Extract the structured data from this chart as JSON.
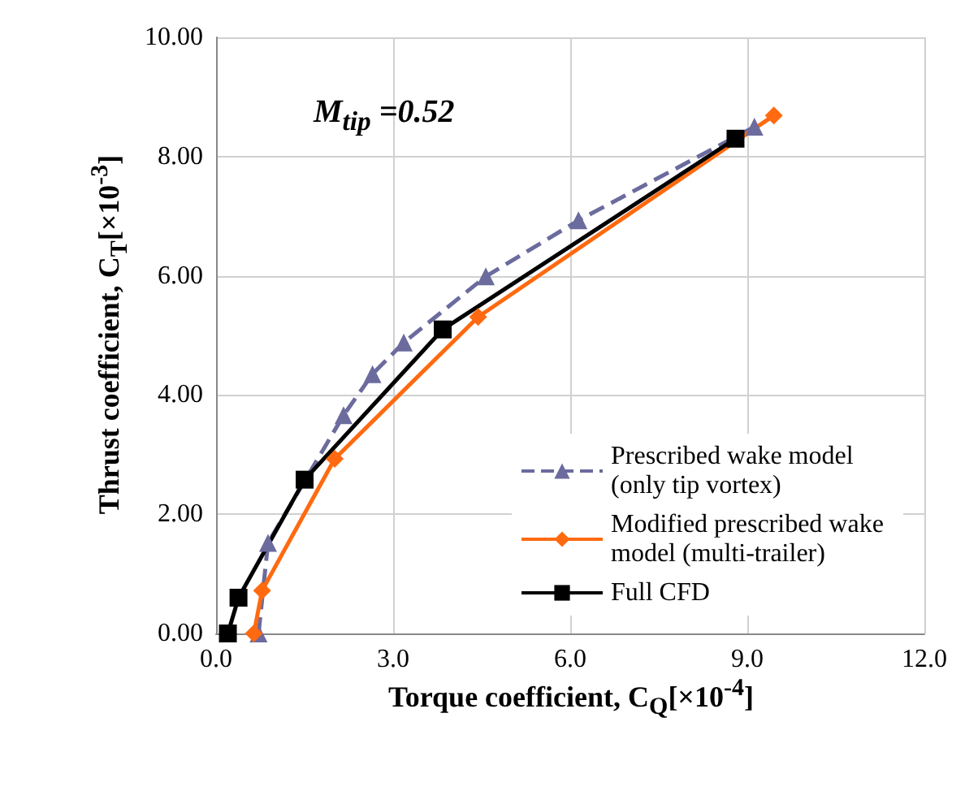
{
  "chart_data": {
    "type": "line",
    "xlabel": "Torque coefficient, C$_{Q}$[×10$^{-4}$]",
    "ylabel": "Thrust coefficient, C$_{T}$[×10$^{-3}$]",
    "annotations": [
      "M$_{tip}$ =0.52"
    ],
    "xlim": [
      0,
      12
    ],
    "xticks": [
      {
        "value": 0,
        "label": "0.0"
      },
      {
        "value": 3,
        "label": "3.0"
      },
      {
        "value": 6,
        "label": "6.0"
      },
      {
        "value": 9,
        "label": "9.0"
      },
      {
        "value": 12,
        "label": "12.0"
      }
    ],
    "ylim": [
      0,
      10
    ],
    "yticks": [
      {
        "value": 0,
        "label": "0.00"
      },
      {
        "value": 2,
        "label": "2.00"
      },
      {
        "value": 4,
        "label": "4.00"
      },
      {
        "value": 6,
        "label": "6.00"
      },
      {
        "value": 8,
        "label": "8.00"
      },
      {
        "value": 10,
        "label": "10.00"
      }
    ],
    "grid": true,
    "legend": "bottom right",
    "series": [
      {
        "name": "Prescribed wake model (only tip vortex)",
        "color": "#6b6b9e",
        "marker": "triangle",
        "line_style": "dashed",
        "x": [
          0.72,
          0.88,
          2.16,
          2.65,
          3.18,
          4.57,
          6.14,
          9.12
        ],
        "values": [
          0,
          1.52,
          3.66,
          4.35,
          4.88,
          5.99,
          6.93,
          8.5
        ]
      },
      {
        "name": "Modified prescribed wake model (multi-trailer)",
        "color": "#ff6a10",
        "marker": "diamond",
        "line_style": "solid",
        "x": [
          0.64,
          0.78,
          2.01,
          4.44,
          9.45
        ],
        "values": [
          0,
          0.72,
          2.93,
          5.31,
          8.69
        ]
      },
      {
        "name": "Full CFD",
        "color": "#000000",
        "marker": "square",
        "line_style": "solid",
        "x": [
          0.2,
          0.38,
          1.5,
          3.84,
          8.8
        ],
        "values": [
          0,
          0.6,
          2.58,
          5.1,
          8.3
        ]
      }
    ]
  }
}
